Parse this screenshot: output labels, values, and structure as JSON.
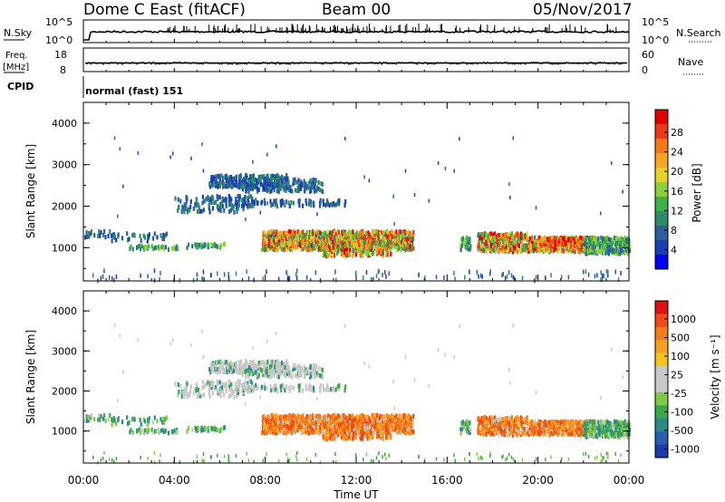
{
  "header": {
    "station": "Dome C East (fitACF)",
    "beam": "Beam 00",
    "date": "05/Nov/2017"
  },
  "chart_data": [
    {
      "type": "line",
      "panel": "noise",
      "left_label": "N.Sky",
      "right_label": "N.Search",
      "y_ticks_left": [
        "10^5",
        "10^0"
      ],
      "y_ticks_right": [
        "10^5",
        "10^0"
      ],
      "scale": "log"
    },
    {
      "type": "scatter",
      "panel": "frequency",
      "left_label_top": "Freq.",
      "left_label_bottom": "[MHz]",
      "right_label": "Nave",
      "y_ticks_left": [
        "18",
        "8"
      ],
      "y_ticks_right": [
        "60",
        "0"
      ]
    },
    {
      "type": "table",
      "panel": "cpid",
      "label": "CPID",
      "value": "normal (fast) 151"
    },
    {
      "type": "heatmap",
      "panel": "power",
      "ylabel": "Slant Range [km]",
      "yticks": [
        "4000",
        "3000",
        "2000",
        "1000"
      ],
      "ylim": [
        200,
        4500
      ],
      "colorbar": {
        "label": "Power [dB]",
        "ticks": [
          "28",
          "24",
          "20",
          "16",
          "12",
          "8",
          "4"
        ],
        "colors": [
          "#0000ff",
          "#1a3fb0",
          "#2c5e9e",
          "#2f8a6a",
          "#3cb34a",
          "#8ccf3a",
          "#e6d32a",
          "#f5a623",
          "#f07a16",
          "#ee3a16",
          "#e00000"
        ]
      }
    },
    {
      "type": "heatmap",
      "panel": "velocity",
      "ylabel": "Slant Range [km]",
      "yticks": [
        "4000",
        "3000",
        "2000",
        "1000"
      ],
      "ylim": [
        200,
        4500
      ],
      "colorbar": {
        "label": "Velocity [m s⁻¹]",
        "ticks": [
          "1000",
          "500",
          "100",
          "25",
          "-25",
          "-100",
          "-500",
          "-1000"
        ],
        "colors": [
          "#1c3aa8",
          "#2a5cb0",
          "#2e8a8a",
          "#3aa84a",
          "#7ec84a",
          "#c8c8c8",
          "#c8c8c8",
          "#f5c518",
          "#f5a023",
          "#f07d16",
          "#ee4a16",
          "#e01010"
        ]
      }
    }
  ],
  "xaxis": {
    "ticks": [
      "00:00",
      "04:00",
      "08:00",
      "12:00",
      "16:00",
      "20:00",
      "00:00"
    ],
    "label": "Time UT"
  }
}
